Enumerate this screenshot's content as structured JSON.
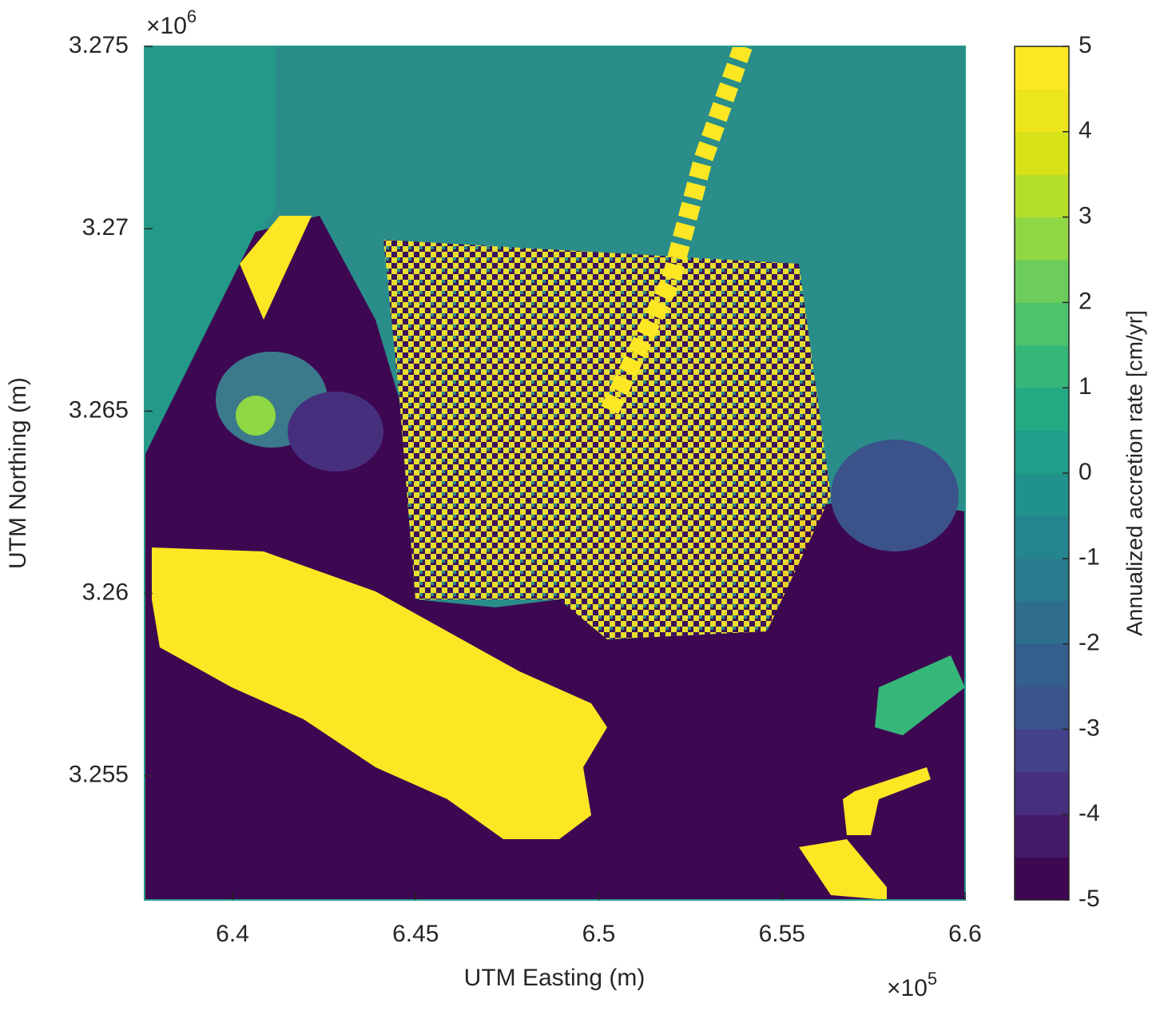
{
  "chart_data": {
    "type": "heatmap",
    "x_label": "UTM Easting (m)",
    "y_label": "UTM Northing (m)",
    "x_multiplier": {
      "base": "×10",
      "exponent": "5"
    },
    "y_multiplier": {
      "base": "×10",
      "exponent": "6"
    },
    "xlim": [
      6.376,
      6.6
    ],
    "xticks": [
      6.4,
      6.45,
      6.5,
      6.55,
      6.6
    ],
    "ylim": [
      3.2516,
      3.275
    ],
    "yticks": [
      3.255,
      3.26,
      3.265,
      3.27,
      3.275
    ],
    "colorbar": {
      "label": "Annualized accretion rate [cm/yr]",
      "clim": [
        -5,
        5
      ],
      "ticks": [
        -5,
        -4,
        -3,
        -2,
        -1,
        0,
        1,
        2,
        3,
        4,
        5
      ],
      "colors": [
        "#3e0751",
        "#461a6a",
        "#46307e",
        "#42418a",
        "#3b528b",
        "#345f8d",
        "#2e6d8e",
        "#297a8e",
        "#25858e",
        "#21918c",
        "#1f9e89",
        "#24aa83",
        "#35b779",
        "#4ec36b",
        "#6ccd5a",
        "#8fd744",
        "#b5de2b",
        "#d8e219",
        "#ece51b",
        "#fde725"
      ]
    }
  }
}
